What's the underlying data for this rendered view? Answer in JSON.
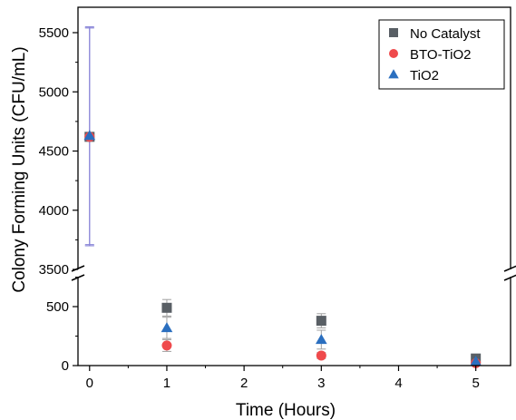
{
  "chart_data": {
    "type": "scatter",
    "xlabel": "Time (Hours)",
    "ylabel": "Colony Forming Units (CFU/mL)",
    "xlim": [
      -0.15,
      5.45
    ],
    "x_ticks": [
      "0",
      "1",
      "2",
      "3",
      "4",
      "5"
    ],
    "y_axis_break": {
      "lower_range": [
        0,
        750
      ],
      "upper_range": [
        3500,
        5700
      ],
      "lower_ticks": [
        "0",
        "500"
      ],
      "upper_ticks": [
        "3500",
        "4000",
        "4500",
        "5000",
        "5500"
      ]
    },
    "legend_position": "top-right",
    "series": [
      {
        "name": "No Catalyst",
        "marker": "square",
        "color": "#595f65",
        "points": [
          {
            "x": 0,
            "y": 4620,
            "err": 920
          },
          {
            "x": 1,
            "y": 490,
            "err": 70
          },
          {
            "x": 3,
            "y": 380,
            "err": 60
          },
          {
            "x": 5,
            "y": 60,
            "err": 15
          }
        ]
      },
      {
        "name": "BTO-TiO2",
        "marker": "circle",
        "color": "#ef4a4c",
        "points": [
          {
            "x": 0,
            "y": 4620,
            "err": 920
          },
          {
            "x": 1,
            "y": 170,
            "err": 50
          },
          {
            "x": 3,
            "y": 85,
            "err": 25
          },
          {
            "x": 5,
            "y": 20,
            "err": 8
          }
        ]
      },
      {
        "name": "TiO2",
        "marker": "triangle",
        "color": "#2b6fbf",
        "points": [
          {
            "x": 0,
            "y": 4630,
            "err": 920
          },
          {
            "x": 1,
            "y": 320,
            "err": 90
          },
          {
            "x": 3,
            "y": 220,
            "err": 80
          },
          {
            "x": 5,
            "y": 35,
            "err": 10
          }
        ]
      }
    ],
    "error_bar_color": "#8a86d8"
  }
}
